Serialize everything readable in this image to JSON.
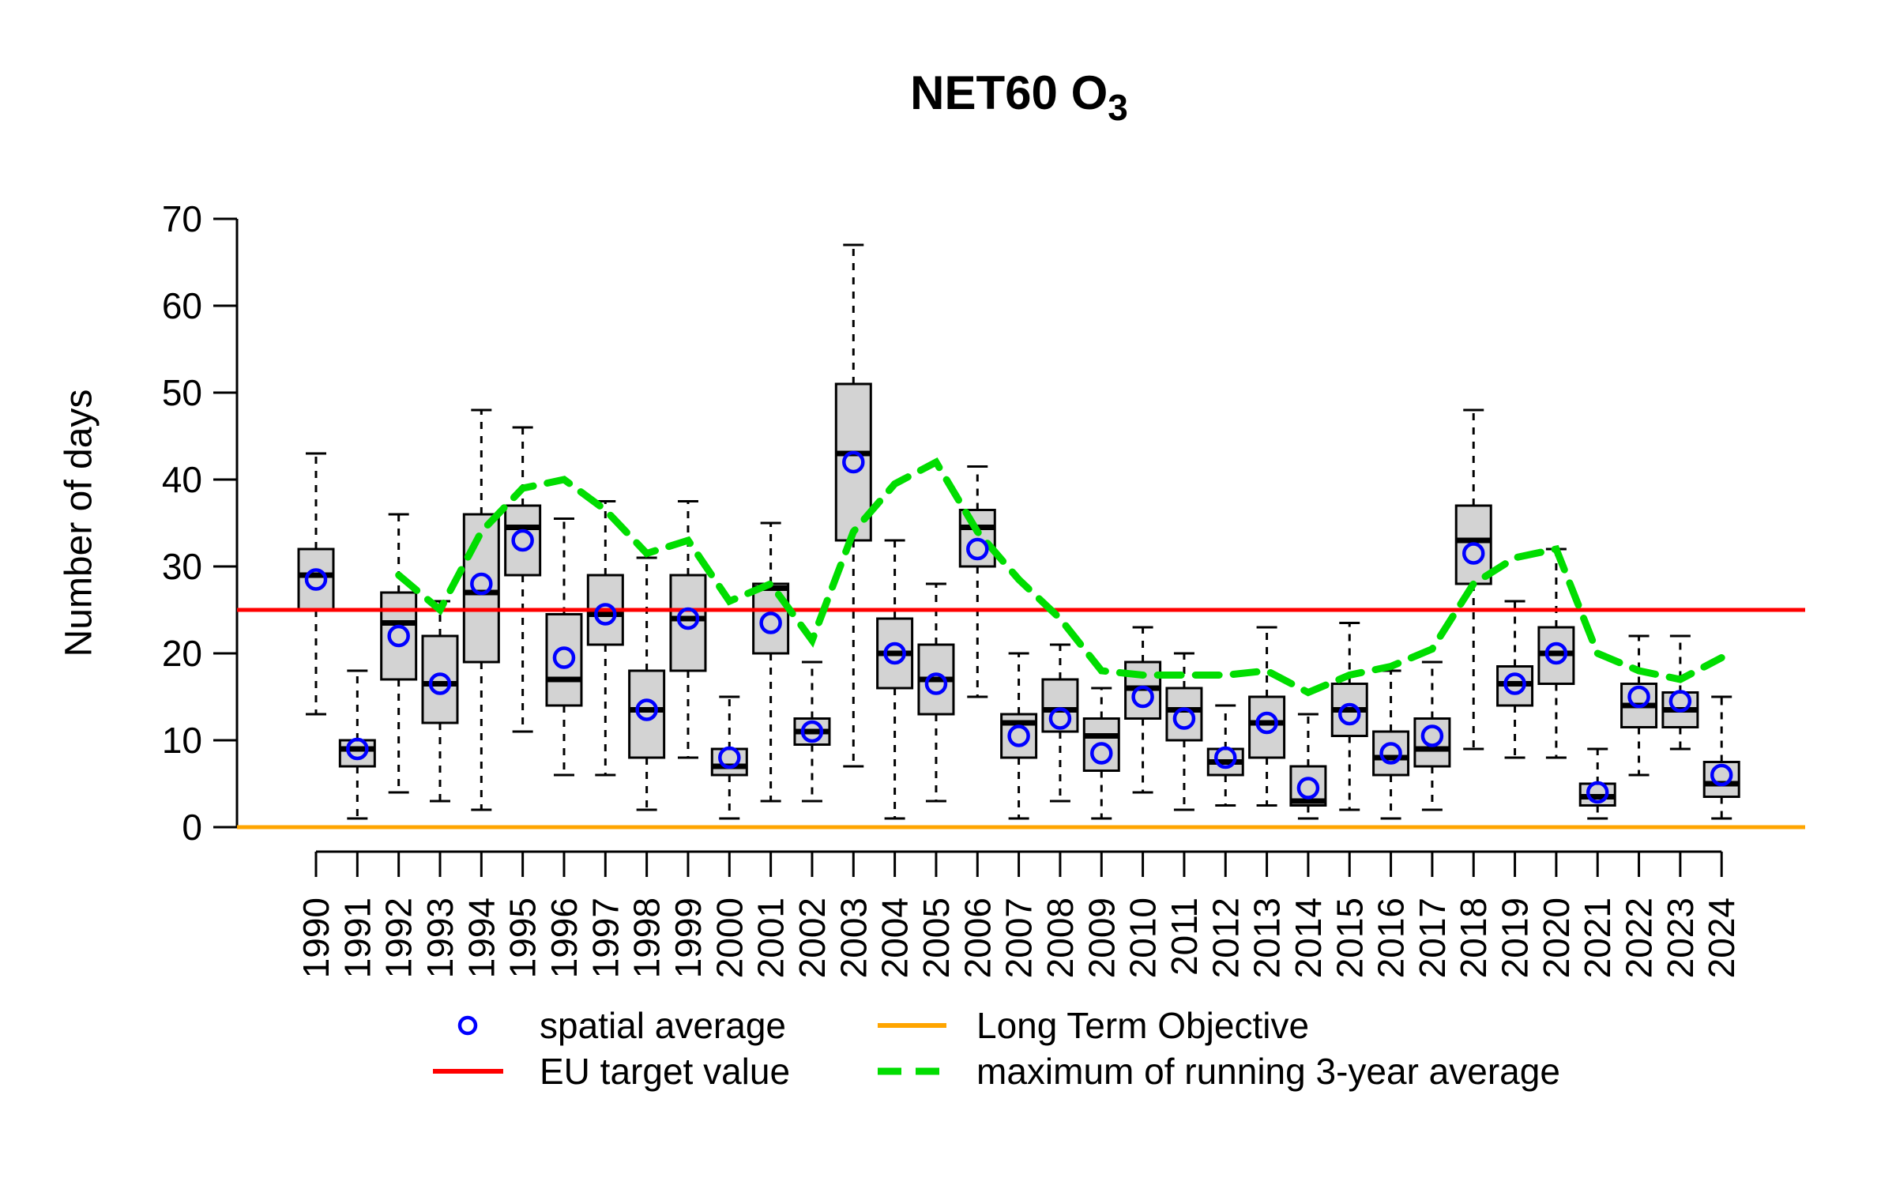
{
  "title": {
    "main": "NET60 O",
    "sub": "3",
    "full": "NET60 O3"
  },
  "ylabel": "Number of days",
  "legend": {
    "spatial_average": "spatial average",
    "eu_target_value": "EU target value",
    "long_term_objective": "Long Term Objective",
    "max_running_avg": "maximum of running 3-year average"
  },
  "colors": {
    "spatial_average": "#0000FF",
    "eu_target_value": "#FF0000",
    "long_term_objective": "#FFA500",
    "max_running_avg": "#00DD00",
    "box_fill": "#D3D3D3",
    "box_border": "#000000"
  },
  "chart_data": {
    "type": "boxplot",
    "title": "NET60 O3",
    "xlabel": "",
    "ylabel": "Number of days",
    "ylim": [
      0,
      70
    ],
    "yticks": [
      0,
      10,
      20,
      30,
      40,
      50,
      60,
      70
    ],
    "grid": false,
    "legend_position": "bottom",
    "categories": [
      1990,
      1991,
      1992,
      1993,
      1994,
      1995,
      1996,
      1997,
      1998,
      1999,
      2000,
      2001,
      2002,
      2003,
      2004,
      2005,
      2006,
      2007,
      2008,
      2009,
      2010,
      2011,
      2012,
      2013,
      2014,
      2015,
      2016,
      2017,
      2018,
      2019,
      2020,
      2021,
      2022,
      2023,
      2024
    ],
    "boxplot": {
      "whisker_low": [
        13,
        1,
        4,
        3,
        2,
        11,
        6,
        6,
        2,
        8,
        1,
        3,
        3,
        7,
        1,
        3,
        15,
        1,
        3,
        1,
        4,
        2,
        2.5,
        2.5,
        1,
        2,
        1,
        2,
        9,
        8,
        8,
        1,
        6,
        9,
        1
      ],
      "q1": [
        25,
        7,
        17,
        12,
        19,
        29,
        14,
        21,
        8,
        18,
        6,
        20,
        9.5,
        33,
        16,
        13,
        30,
        8,
        11,
        6.5,
        12.5,
        10,
        6,
        8,
        2.5,
        10.5,
        6,
        7,
        28,
        14,
        16.5,
        2.5,
        11.5,
        11.5,
        3.5
      ],
      "median": [
        29,
        9,
        23.5,
        16.5,
        27,
        34.5,
        17,
        24.5,
        13.5,
        24,
        7,
        27.5,
        11,
        43,
        20,
        17,
        34.5,
        12,
        13.5,
        10.5,
        16,
        13.5,
        7.5,
        12,
        3,
        13.5,
        8,
        9,
        33,
        16.5,
        20,
        3.5,
        14,
        13.5,
        5
      ],
      "q3": [
        32,
        10,
        27,
        22,
        36,
        37,
        24.5,
        29,
        18,
        29,
        9,
        28,
        12.5,
        51,
        24,
        21,
        36.5,
        13,
        17,
        12.5,
        19,
        16,
        9,
        15,
        7,
        16.5,
        11,
        12.5,
        37,
        18.5,
        23,
        5,
        16.5,
        15.5,
        7.5
      ],
      "whisker_high": [
        43,
        18,
        36,
        26,
        48,
        46,
        35.5,
        37.5,
        31,
        37.5,
        15,
        35,
        19,
        67,
        33,
        28,
        41.5,
        20,
        21,
        16,
        23,
        20,
        14,
        23,
        13,
        23.5,
        18,
        19,
        48,
        26,
        32,
        9,
        22,
        22,
        15
      ]
    },
    "series": [
      {
        "name": "spatial average",
        "type": "scatter",
        "values": [
          28.5,
          9,
          22,
          16.5,
          28,
          33,
          19.5,
          24.5,
          13.5,
          24,
          8,
          23.5,
          11,
          42,
          20,
          16.5,
          32,
          10.5,
          12.5,
          8.5,
          15,
          12.5,
          8,
          12,
          4.5,
          13,
          8.5,
          10.5,
          31.5,
          16.5,
          20,
          4,
          15,
          14.5,
          6
        ]
      },
      {
        "name": "maximum of running 3-year average",
        "type": "line",
        "values": [
          null,
          null,
          29,
          25,
          34,
          39,
          40,
          36.5,
          31.5,
          33,
          26,
          28,
          21.5,
          34,
          39.5,
          42,
          34,
          28.5,
          24,
          18,
          17.5,
          17.5,
          17.5,
          18,
          15.5,
          17.5,
          18.5,
          20.5,
          28,
          31,
          32,
          20,
          18,
          17,
          19.5
        ]
      },
      {
        "name": "EU target value",
        "type": "hline",
        "value": 25
      },
      {
        "name": "Long Term Objective",
        "type": "hline",
        "value": 0
      }
    ]
  }
}
